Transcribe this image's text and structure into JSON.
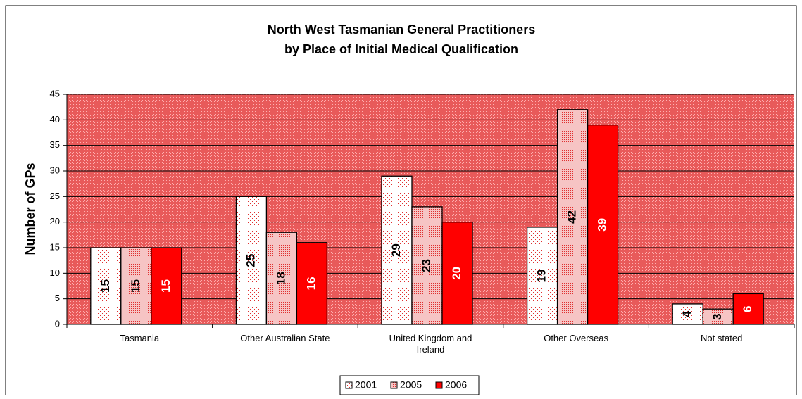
{
  "chart_data": {
    "type": "bar",
    "title": [
      "North West Tasmanian General Practitioners",
      "by Place of Initial Medical Qualification"
    ],
    "y_label": "Number of GPs",
    "categories": [
      "Tasmania",
      "Other Australian State",
      "United Kingdom and Ireland",
      "Other Overseas",
      "Not stated"
    ],
    "series": [
      {
        "name": "2001",
        "color": "#ffffff",
        "values": [
          15,
          25,
          29,
          19,
          4
        ]
      },
      {
        "name": "2005",
        "color": "#f6c4c4",
        "values": [
          15,
          18,
          23,
          42,
          3
        ]
      },
      {
        "name": "2006",
        "color": "#ff0000",
        "values": [
          15,
          16,
          20,
          39,
          6
        ]
      }
    ],
    "ylim": [
      0,
      45
    ],
    "yticks": [
      0,
      5,
      10,
      15,
      20,
      25,
      30,
      35,
      40,
      45
    ],
    "grid": true,
    "legend": "bottom"
  }
}
